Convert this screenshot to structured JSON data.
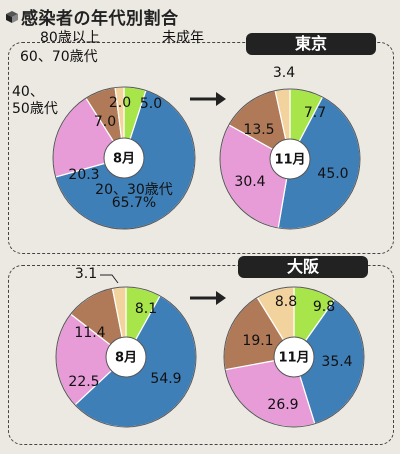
{
  "title": "感染者の年代別割合",
  "colors": {
    "20_30": "#3f7fb8",
    "40_50": "#e79bd7",
    "60_70": "#b07a58",
    "80plus": "#f3d39d",
    "minor": "#a8e54a"
  },
  "chart_data": [
    {
      "type": "pie",
      "panel": "東京",
      "center_label": "8月",
      "series": [
        {
          "name": "未成年",
          "value": 5.0,
          "color_key": "minor",
          "label": "5.0"
        },
        {
          "name": "20、30歳代",
          "value": 65.7,
          "color_key": "20_30",
          "label": "65.7%"
        },
        {
          "name": "40、50歳代",
          "value": 20.3,
          "color_key": "40_50",
          "label": "20.3"
        },
        {
          "name": "60、70歳代",
          "value": 7.0,
          "color_key": "60_70",
          "label": "7.0"
        },
        {
          "name": "80歳以上",
          "value": 2.0,
          "color_key": "80plus",
          "label": "2.0"
        }
      ],
      "annotations": [
        "80歳以上",
        "60、70歳代",
        "40、",
        "50歳代",
        "未成年",
        "20、30歳代"
      ]
    },
    {
      "type": "pie",
      "panel": "東京",
      "center_label": "11月",
      "series": [
        {
          "name": "未成年",
          "value": 7.7,
          "color_key": "minor",
          "label": "7.7"
        },
        {
          "name": "20、30歳代",
          "value": 45.0,
          "color_key": "20_30",
          "label": "45.0"
        },
        {
          "name": "40、50歳代",
          "value": 30.4,
          "color_key": "40_50",
          "label": "30.4"
        },
        {
          "name": "60、70歳代",
          "value": 13.5,
          "color_key": "60_70",
          "label": "13.5"
        },
        {
          "name": "80歳以上",
          "value": 3.4,
          "color_key": "80plus",
          "label": "3.4"
        }
      ]
    },
    {
      "type": "pie",
      "panel": "大阪",
      "center_label": "8月",
      "series": [
        {
          "name": "未成年",
          "value": 8.1,
          "color_key": "minor",
          "label": "8.1"
        },
        {
          "name": "20、30歳代",
          "value": 54.9,
          "color_key": "20_30",
          "label": "54.9"
        },
        {
          "name": "40、50歳代",
          "value": 22.5,
          "color_key": "40_50",
          "label": "22.5"
        },
        {
          "name": "60、70歳代",
          "value": 11.4,
          "color_key": "60_70",
          "label": "11.4"
        },
        {
          "name": "80歳以上",
          "value": 3.1,
          "color_key": "80plus",
          "label": "3.1"
        }
      ]
    },
    {
      "type": "pie",
      "panel": "大阪",
      "center_label": "11月",
      "series": [
        {
          "name": "未成年",
          "value": 9.8,
          "color_key": "minor",
          "label": "9.8"
        },
        {
          "name": "20、30歳代",
          "value": 35.4,
          "color_key": "20_30",
          "label": "35.4"
        },
        {
          "name": "40、50歳代",
          "value": 26.9,
          "color_key": "40_50",
          "label": "26.9"
        },
        {
          "name": "60、70歳代",
          "value": 19.1,
          "color_key": "60_70",
          "label": "19.1"
        },
        {
          "name": "80歳以上",
          "value": 8.8,
          "color_key": "80plus",
          "label": "8.8"
        }
      ]
    }
  ],
  "panels": {
    "tokyo": "東京",
    "osaka": "大阪"
  }
}
